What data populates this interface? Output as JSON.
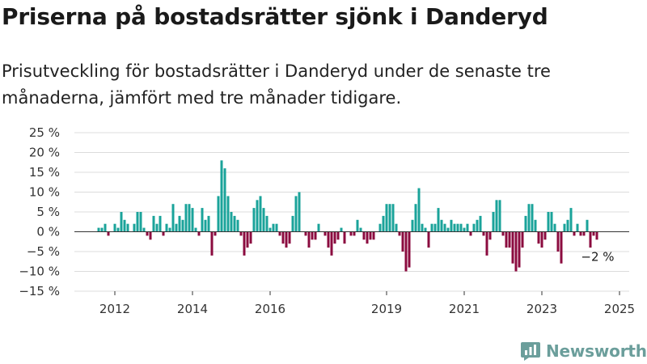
{
  "title": "Priserna på bostadsrätter sjönk i Danderyd",
  "subtitle": "Prisutveckling för bostadsrätter i Danderyd under de senaste tre månaderna, jämfört med tre månader tidigare.",
  "brand": {
    "name": "Newsworthy",
    "icon": "newsworthy-logo-icon",
    "color": "#6b9e9b"
  },
  "chart_data": {
    "type": "bar",
    "x_start": "2011-08",
    "x_step": "month",
    "values": [
      1,
      1,
      2,
      -1,
      0,
      2,
      1,
      5,
      3,
      2,
      0,
      2,
      5,
      5,
      1,
      -1,
      -2,
      4,
      2,
      4,
      -1,
      2,
      1,
      7,
      2,
      4,
      3,
      7,
      7,
      6,
      1,
      -1,
      6,
      3,
      4,
      -6,
      -1,
      9,
      18,
      16,
      9,
      5,
      4,
      3,
      -1,
      -6,
      -4,
      -3,
      6,
      8,
      9,
      6,
      4,
      1,
      2,
      2,
      -1,
      -3,
      -4,
      -3,
      4,
      9,
      10,
      0,
      -1,
      -4,
      -2,
      -2,
      2,
      0,
      -1,
      -4,
      -6,
      -3,
      -2,
      1,
      -3,
      0,
      -1,
      -1,
      3,
      1,
      -2,
      -3,
      -2,
      -2,
      0,
      2,
      4,
      7,
      7,
      7,
      2,
      -1,
      -5,
      -10,
      -9,
      3,
      7,
      11,
      2,
      1,
      -4,
      2,
      2,
      6,
      3,
      2,
      1,
      3,
      2,
      2,
      2,
      1,
      2,
      -1,
      2,
      3,
      4,
      -1,
      -6,
      -2,
      5,
      8,
      8,
      -1,
      -4,
      -4,
      -8,
      -10,
      -9,
      -4,
      4,
      7,
      7,
      3,
      -3,
      -4,
      -2,
      5,
      5,
      2,
      -5,
      -8,
      2,
      3,
      6,
      -1,
      2,
      -1,
      -1,
      3,
      -4,
      -1,
      -2
    ],
    "xticks": [
      "2012",
      "2014",
      "2016",
      "2019",
      "2021",
      "2023",
      "2025"
    ],
    "xtick_months": [
      "2012-01",
      "2014-01",
      "2016-01",
      "2019-01",
      "2021-01",
      "2023-01",
      "2025-01"
    ],
    "yticks": [
      "25 %",
      "20 %",
      "15 %",
      "10 %",
      "5 %",
      "0 %",
      "−5 %",
      "−10 %",
      "−15 %"
    ],
    "ylim": [
      -15,
      25
    ],
    "ytick_step": 5,
    "positive_color": "#1aa39a",
    "negative_color": "#8b0b3f",
    "annotation": "−2 %",
    "grid": true
  }
}
